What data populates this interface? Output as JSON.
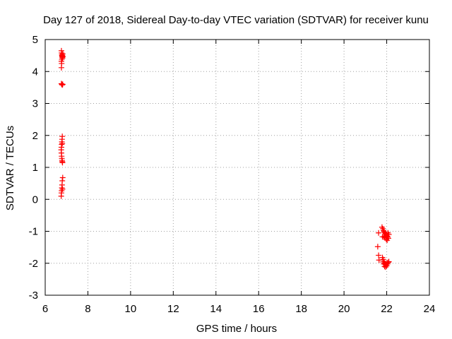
{
  "chart_data": {
    "type": "scatter",
    "title": "Day 127 of 2018, Sidereal Day-to-day VTEC variation (SDTVAR) for receiver kunu",
    "xlabel": "GPS time / hours",
    "ylabel": "SDTVAR / TECUs",
    "xlim": [
      6,
      24
    ],
    "ylim": [
      -3,
      5
    ],
    "xticks": [
      6,
      8,
      10,
      12,
      14,
      16,
      18,
      20,
      22,
      24
    ],
    "yticks": [
      -3,
      -2,
      -1,
      0,
      1,
      2,
      3,
      4,
      5
    ],
    "grid": true,
    "marker": "+",
    "series": [
      {
        "name": "SDTVAR",
        "color": "#ff0000",
        "points": [
          [
            6.76,
            4.65
          ],
          [
            6.77,
            4.58
          ],
          [
            6.78,
            4.52
          ],
          [
            6.79,
            4.48
          ],
          [
            6.8,
            4.45
          ],
          [
            6.81,
            4.42
          ],
          [
            6.82,
            4.55
          ],
          [
            6.78,
            4.38
          ],
          [
            6.76,
            4.32
          ],
          [
            6.77,
            4.25
          ],
          [
            6.76,
            4.12
          ],
          [
            6.8,
            4.5
          ],
          [
            6.83,
            4.47
          ],
          [
            6.76,
            3.62
          ],
          [
            6.78,
            3.6
          ],
          [
            6.8,
            3.58
          ],
          [
            6.82,
            3.6
          ],
          [
            6.8,
            1.97
          ],
          [
            6.79,
            1.88
          ],
          [
            6.78,
            1.8
          ],
          [
            6.77,
            1.72
          ],
          [
            6.76,
            1.63
          ],
          [
            6.75,
            1.55
          ],
          [
            6.76,
            1.45
          ],
          [
            6.77,
            1.35
          ],
          [
            6.78,
            1.28
          ],
          [
            6.79,
            1.22
          ],
          [
            6.8,
            1.18
          ],
          [
            6.81,
            1.15
          ],
          [
            6.8,
            1.75
          ],
          [
            6.82,
            0.68
          ],
          [
            6.8,
            0.58
          ],
          [
            6.79,
            0.45
          ],
          [
            6.78,
            0.36
          ],
          [
            6.77,
            0.27
          ],
          [
            6.76,
            0.2
          ],
          [
            6.75,
            0.1
          ],
          [
            6.81,
            0.32
          ],
          [
            21.78,
            -0.87
          ],
          [
            21.82,
            -0.92
          ],
          [
            21.85,
            -0.98
          ],
          [
            21.88,
            -1.02
          ],
          [
            21.92,
            -1.05
          ],
          [
            21.95,
            -1.08
          ],
          [
            21.98,
            -1.12
          ],
          [
            22.02,
            -1.15
          ],
          [
            22.05,
            -1.18
          ],
          [
            22.08,
            -1.22
          ],
          [
            22.02,
            -1.28
          ],
          [
            21.98,
            -1.25
          ],
          [
            21.92,
            -1.2
          ],
          [
            21.86,
            -1.18
          ],
          [
            21.8,
            -1.17
          ],
          [
            22.1,
            -1.1
          ],
          [
            22.06,
            -1.05
          ],
          [
            21.9,
            -1.15
          ],
          [
            21.62,
            -1.05
          ],
          [
            21.58,
            -1.48
          ],
          [
            21.62,
            -1.75
          ],
          [
            21.64,
            -1.9
          ],
          [
            21.8,
            -1.82
          ],
          [
            21.84,
            -1.88
          ],
          [
            21.88,
            -1.95
          ],
          [
            21.92,
            -2.0
          ],
          [
            21.96,
            -2.05
          ],
          [
            22.0,
            -2.08
          ],
          [
            22.04,
            -2.02
          ],
          [
            22.08,
            -1.97
          ],
          [
            22.1,
            -1.95
          ],
          [
            21.95,
            -2.12
          ],
          [
            21.9,
            -2.1
          ],
          [
            21.86,
            -2.02
          ],
          [
            21.82,
            -1.96
          ],
          [
            22.02,
            -1.98
          ]
        ]
      }
    ]
  }
}
